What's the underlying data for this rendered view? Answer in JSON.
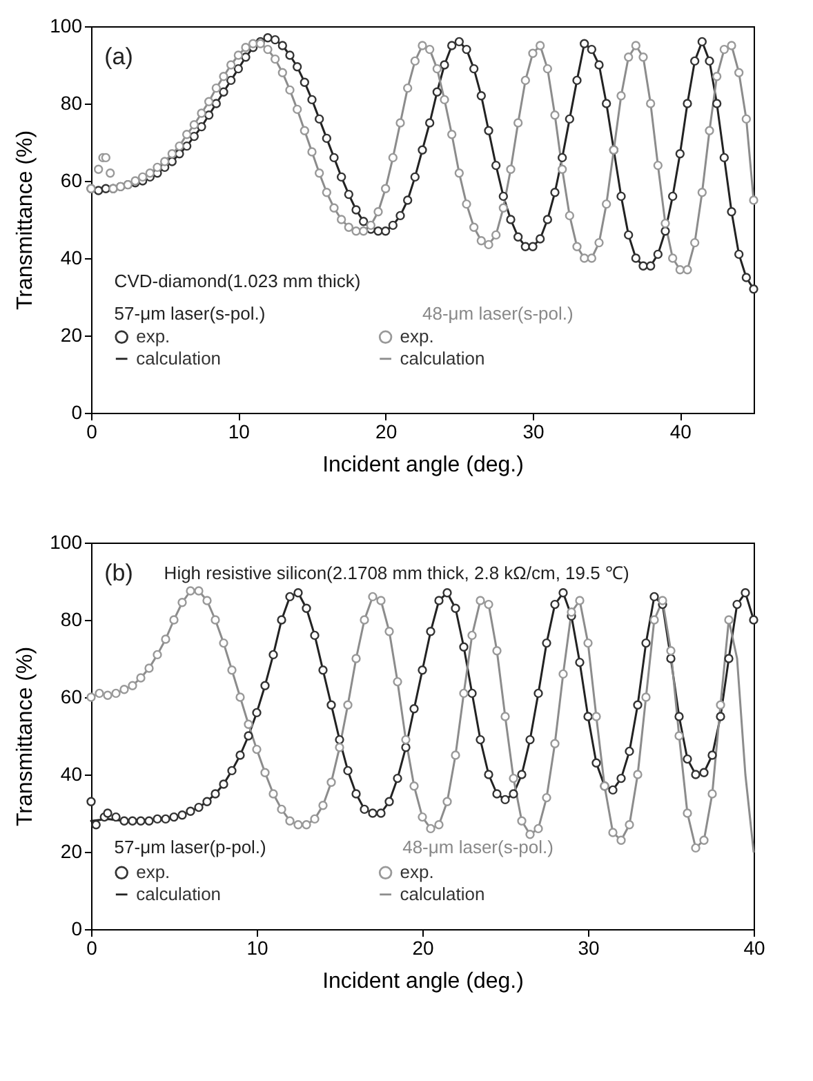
{
  "chart_data": [
    {
      "type": "scatter",
      "xlabel": "Incident angle (deg.)",
      "ylabel": "Transmittance (%)",
      "xlim": [
        0,
        45
      ],
      "ylim": [
        0,
        100
      ],
      "xticks": [
        0,
        10,
        20,
        30,
        40
      ],
      "yticks": [
        0,
        20,
        40,
        60,
        80,
        100
      ],
      "grid": false,
      "legend": "bottom left",
      "annotations": [
        "(a)",
        "CVD-diamond(1.023 mm thick)",
        "57-μm laser(s-pol.)",
        "48-μm laser(s-pol.)"
      ],
      "series": [
        {
          "name": "exp.",
          "type": "scatter",
          "marker": "circle",
          "color": "#333333",
          "x": [
            0,
            0.5,
            1,
            1.5,
            2,
            2.5,
            3,
            3.5,
            4,
            4.5,
            5,
            5.5,
            6,
            6.5,
            7,
            7.5,
            8,
            8.5,
            9,
            9.5,
            10,
            10.5,
            11,
            11.5,
            12,
            12.5,
            13,
            13.5,
            14,
            14.5,
            15,
            15.5,
            16,
            16.5,
            17,
            17.5,
            18,
            18.5,
            19,
            19.5,
            20,
            20.5,
            21,
            21.5,
            22,
            22.5,
            23,
            23.5,
            24,
            24.5,
            25,
            25.5,
            26,
            26.5,
            27,
            27.5,
            28,
            28.5,
            29,
            29.5,
            30,
            30.5,
            31,
            31.5,
            32,
            32.5,
            33,
            33.5,
            34,
            34.5,
            35,
            35.5,
            36,
            36.5,
            37,
            37.5,
            38,
            38.5,
            39,
            39.5,
            40,
            40.5,
            41,
            41.5,
            42,
            42.5,
            43,
            43.5,
            44,
            44.5,
            45
          ],
          "values": [
            58,
            57.5,
            58,
            58,
            58.5,
            59,
            59.5,
            60,
            61,
            62,
            63.5,
            65,
            67,
            69,
            71.5,
            74,
            77,
            80,
            83,
            86,
            89,
            92,
            94.5,
            96,
            97,
            96.5,
            95,
            92.5,
            89.5,
            85.5,
            81,
            76,
            71,
            66,
            61,
            56.5,
            52.5,
            49.5,
            47.5,
            47,
            47,
            48.5,
            51,
            55,
            61,
            68,
            75,
            83,
            90,
            95,
            96,
            94,
            89,
            82,
            73,
            64,
            56,
            50,
            45.5,
            43,
            43,
            45,
            50,
            57,
            66,
            76,
            86,
            95.5,
            94,
            90,
            80,
            68,
            56,
            46,
            40,
            38,
            38,
            41,
            47,
            56,
            67,
            80,
            91,
            96,
            91,
            80,
            66,
            52,
            41,
            35,
            32
          ]
        },
        {
          "name": "exp.",
          "type": "scatter",
          "marker": "circle",
          "color": "#999999",
          "x": [
            0,
            0.5,
            0.8,
            1,
            1.3,
            1.5,
            2,
            2.5,
            3,
            3.5,
            4,
            4.5,
            5,
            5.5,
            6,
            6.5,
            7,
            7.5,
            8,
            8.5,
            9,
            9.5,
            10,
            10.5,
            11,
            11.5,
            12,
            12.5,
            13,
            13.5,
            14,
            14.5,
            15,
            15.5,
            16,
            16.5,
            17,
            17.5,
            18,
            18.5,
            19,
            19.5,
            20,
            20.5,
            21,
            21.5,
            22,
            22.5,
            23,
            23.5,
            24,
            24.5,
            25,
            25.5,
            26,
            26.5,
            27,
            27.5,
            28,
            28.5,
            29,
            29.5,
            30,
            30.5,
            31,
            31.5,
            32,
            32.5,
            33,
            33.5,
            34,
            34.5,
            35,
            35.5,
            36,
            36.5,
            37,
            37.5,
            38,
            38.5,
            39,
            39.5,
            40,
            40.5,
            41,
            41.5,
            42,
            42.5,
            43,
            43.5,
            44,
            44.5,
            45
          ],
          "values": [
            58,
            63,
            66,
            66,
            62,
            58,
            58.5,
            59,
            60,
            61,
            62,
            63.5,
            65,
            67,
            69,
            72,
            74.5,
            77.5,
            80.5,
            84,
            87,
            90,
            92.5,
            94.5,
            95.5,
            95.5,
            94,
            91.5,
            88,
            83.5,
            78.5,
            73,
            67.5,
            62,
            57,
            53,
            50,
            48,
            47,
            47,
            48.5,
            52,
            58,
            66,
            75,
            84,
            91,
            95,
            94,
            89,
            81,
            72,
            62,
            54,
            48,
            44.5,
            43.5,
            46,
            53,
            63,
            75,
            86,
            93,
            95,
            89,
            77,
            63,
            51,
            43,
            40,
            40,
            44,
            54,
            68,
            82,
            92,
            95,
            92,
            80,
            64,
            49,
            40,
            37,
            37,
            44,
            57,
            73,
            87,
            94,
            95,
            88,
            76,
            55
          ]
        },
        {
          "name": "calculation",
          "type": "line",
          "line_style": "solid",
          "color": "#222222",
          "x": [
            0,
            0.5,
            1,
            1.5,
            2,
            2.5,
            3,
            3.5,
            4,
            4.5,
            5,
            5.5,
            6,
            6.5,
            7,
            7.5,
            8,
            8.5,
            9,
            9.5,
            10,
            10.5,
            11,
            11.5,
            12,
            12.5,
            13,
            13.5,
            14,
            14.5,
            15,
            15.5,
            16,
            16.5,
            17,
            17.5,
            18,
            18.5,
            19,
            19.5,
            20,
            20.5,
            21,
            21.5,
            22,
            22.5,
            23,
            23.5,
            24,
            24.5,
            25,
            25.5,
            26,
            26.5,
            27,
            27.5,
            28,
            28.5,
            29,
            29.5,
            30,
            30.5,
            31,
            31.5,
            32,
            32.5,
            33,
            33.5,
            34,
            34.5,
            35,
            35.5,
            36,
            36.5,
            37,
            37.5,
            38,
            38.5,
            39,
            39.5,
            40,
            40.5,
            41,
            41.5,
            42,
            42.5,
            43,
            43.5,
            44,
            44.5,
            45
          ],
          "values": [
            58,
            57.5,
            58,
            58,
            58.5,
            59,
            59.5,
            60,
            61,
            62,
            63.5,
            65,
            67,
            69,
            71.5,
            74,
            77,
            80,
            83,
            86,
            89,
            92,
            94.5,
            96,
            97,
            96.5,
            95,
            92.5,
            89.5,
            85.5,
            81,
            76,
            71,
            66,
            61,
            56.5,
            52.5,
            49.5,
            47.5,
            47,
            47,
            48.5,
            51,
            55,
            61,
            68,
            75,
            83,
            90,
            95,
            96,
            94,
            89,
            82,
            73,
            64,
            56,
            50,
            45.5,
            43,
            43,
            45,
            50,
            57,
            66,
            76,
            86,
            95.5,
            94,
            90,
            80,
            68,
            56,
            46,
            40,
            38,
            38,
            41,
            47,
            56,
            67,
            80,
            91,
            96,
            91,
            80,
            66,
            52,
            41,
            35,
            32
          ]
        },
        {
          "name": "calculation",
          "type": "line",
          "line_style": "solid",
          "color": "#8c8c8c",
          "x": [
            0,
            2,
            2.5,
            3,
            3.5,
            4,
            4.5,
            5,
            5.5,
            6,
            6.5,
            7,
            7.5,
            8,
            8.5,
            9,
            9.5,
            10,
            10.5,
            11,
            11.5,
            12,
            12.5,
            13,
            13.5,
            14,
            14.5,
            15,
            15.5,
            16,
            16.5,
            17,
            17.5,
            18,
            18.5,
            19,
            19.5,
            20,
            20.5,
            21,
            21.5,
            22,
            22.5,
            23,
            23.5,
            24,
            24.5,
            25,
            25.5,
            26,
            26.5,
            27,
            27.5,
            28,
            28.5,
            29,
            29.5,
            30,
            30.5,
            31,
            31.5,
            32,
            32.5,
            33,
            33.5,
            34,
            34.5,
            35,
            35.5,
            36,
            36.5,
            37,
            37.5,
            38,
            38.5,
            39,
            39.5,
            40,
            40.5,
            41,
            41.5,
            42,
            42.5,
            43,
            43.5,
            44,
            44.5,
            45
          ],
          "values": [
            58,
            58.5,
            59,
            60,
            61,
            62,
            63.5,
            65,
            67,
            69,
            72,
            74.5,
            77.5,
            80.5,
            84,
            87,
            90,
            92.5,
            94.5,
            95.5,
            95.5,
            94,
            91.5,
            88,
            83.5,
            78.5,
            73,
            67.5,
            62,
            57,
            53,
            50,
            48,
            47,
            47,
            48.5,
            52,
            58,
            66,
            75,
            84,
            91,
            95,
            94,
            89,
            81,
            72,
            62,
            54,
            48,
            44.5,
            43.5,
            46,
            53,
            63,
            75,
            86,
            93,
            95,
            89,
            77,
            63,
            51,
            43,
            40,
            40,
            44,
            54,
            68,
            82,
            92,
            95,
            92,
            80,
            64,
            49,
            40,
            37,
            37,
            44,
            57,
            73,
            87,
            94,
            95,
            88,
            76,
            55
          ]
        }
      ]
    },
    {
      "type": "scatter",
      "xlabel": "Incident angle (deg.)",
      "ylabel": "Transmittance (%)",
      "xlim": [
        0,
        40
      ],
      "ylim": [
        0,
        100
      ],
      "xticks": [
        0,
        10,
        20,
        30,
        40
      ],
      "yticks": [
        0,
        20,
        40,
        60,
        80,
        100
      ],
      "grid": false,
      "legend": "bottom left",
      "annotations": [
        "(b)",
        "High resistive silicon(2.1708 mm thick, 2.8 kΩ/cm, 19.5 ℃)",
        "57-μm laser(p-pol.)",
        "48-μm laser(s-pol.)"
      ],
      "series": [
        {
          "name": "exp.",
          "type": "scatter",
          "marker": "circle",
          "color": "#333333",
          "x": [
            0,
            0.3,
            0.8,
            1,
            1.5,
            2,
            2.5,
            3,
            3.5,
            4,
            4.5,
            5,
            5.5,
            6,
            6.5,
            7,
            7.5,
            8,
            8.5,
            9,
            9.5,
            10,
            10.5,
            11,
            11.5,
            12,
            12.5,
            13,
            13.5,
            14,
            14.5,
            15,
            15.5,
            16,
            16.5,
            17,
            17.5,
            18,
            18.5,
            19,
            19.5,
            20,
            20.5,
            21,
            21.5,
            22,
            22.5,
            23,
            23.5,
            24,
            24.5,
            25,
            25.5,
            26,
            26.5,
            27,
            27.5,
            28,
            28.5,
            29,
            29.5,
            30,
            30.5,
            31,
            31.5,
            32,
            32.5,
            33,
            33.5,
            34,
            34.5,
            35,
            35.5,
            36,
            36.5,
            37,
            37.5,
            38,
            38.5,
            39,
            39.5,
            40
          ],
          "values": [
            33,
            27,
            29,
            30,
            29,
            28,
            28,
            28,
            28,
            28.5,
            28.5,
            29,
            29.5,
            30.5,
            31.5,
            33,
            35,
            37.5,
            41,
            45,
            50,
            56,
            63,
            71,
            80,
            86,
            87,
            83,
            76,
            67,
            58,
            49,
            41,
            35,
            31,
            30,
            30,
            33,
            39,
            47,
            57,
            67,
            77,
            85,
            87,
            83,
            73,
            61,
            49,
            40,
            35,
            33.5,
            35,
            40,
            49,
            61,
            74,
            84,
            87,
            81,
            69,
            55,
            43,
            37,
            36,
            39,
            46,
            58,
            74,
            86,
            84,
            70,
            55,
            44,
            40,
            40.5,
            45,
            55,
            70,
            84,
            87,
            80
          ]
        },
        {
          "name": "exp.",
          "type": "scatter",
          "marker": "circle",
          "color": "#999999",
          "x": [
            0,
            0.5,
            1,
            1.5,
            2,
            2.5,
            3,
            3.5,
            4,
            4.5,
            5,
            5.5,
            6,
            6.5,
            7,
            7.5,
            8,
            8.5,
            9,
            9.5,
            10,
            10.5,
            11,
            11.5,
            12,
            12.5,
            13,
            13.5,
            14,
            14.5,
            15,
            15.5,
            16,
            16.5,
            17,
            17.5,
            18,
            18.5,
            19,
            19.5,
            20,
            20.5,
            21,
            21.5,
            22,
            22.5,
            23,
            23.5,
            24,
            24.5,
            25,
            25.5,
            26,
            26.5,
            27,
            27.5,
            28,
            28.5,
            29,
            29.5,
            30,
            30.5,
            31,
            31.5,
            32,
            32.5,
            33,
            33.5,
            34,
            34.5,
            35,
            35.5,
            36,
            36.5,
            37,
            37.5,
            38,
            38.5
          ],
          "values": [
            60,
            61,
            60.5,
            61,
            62,
            63,
            65,
            67.5,
            71,
            75,
            80,
            84.5,
            87.5,
            87.5,
            85,
            80,
            74,
            67,
            60,
            53,
            46.5,
            40.5,
            35,
            31,
            28,
            27,
            27,
            28.5,
            32,
            38,
            47,
            58,
            70,
            80,
            86,
            85,
            77,
            64,
            49,
            37,
            29,
            26,
            27,
            33,
            45,
            61,
            76,
            85,
            84,
            72,
            55,
            39,
            28,
            24.5,
            26,
            34,
            48,
            66,
            82,
            85,
            74,
            55,
            37,
            25,
            23,
            27,
            40,
            60,
            80,
            85,
            72,
            50,
            30,
            21,
            23,
            35,
            58,
            80
          ]
        },
        {
          "name": "calculation",
          "type": "line",
          "line_style": "solid",
          "color": "#222222",
          "x": [
            0,
            1,
            2,
            2.5,
            3,
            3.5,
            4,
            4.5,
            5,
            5.5,
            6,
            6.5,
            7,
            7.5,
            8,
            8.5,
            9,
            9.5,
            10,
            10.5,
            11,
            11.5,
            12,
            12.5,
            13,
            13.5,
            14,
            14.5,
            15,
            15.5,
            16,
            16.5,
            17,
            17.5,
            18,
            18.5,
            19,
            19.5,
            20,
            20.5,
            21,
            21.5,
            22,
            22.5,
            23,
            23.5,
            24,
            24.5,
            25,
            25.5,
            26,
            26.5,
            27,
            27.5,
            28,
            28.5,
            29,
            29.5,
            30,
            30.5,
            31,
            31.5,
            32,
            32.5,
            33,
            33.5,
            34,
            34.5,
            35,
            35.5,
            36,
            36.5,
            37,
            37.5,
            38,
            38.5,
            39,
            39.5,
            40
          ],
          "values": [
            28,
            28.5,
            28,
            28,
            28,
            28,
            28.5,
            28.5,
            29,
            29.5,
            30.5,
            31.5,
            33,
            35,
            37.5,
            41,
            45,
            50,
            56,
            63,
            71,
            80,
            86,
            87,
            83,
            76,
            67,
            58,
            49,
            41,
            35,
            31,
            30,
            30,
            33,
            39,
            47,
            57,
            67,
            77,
            85,
            87,
            83,
            73,
            61,
            49,
            40,
            35,
            33.5,
            35,
            40,
            49,
            61,
            74,
            84,
            87,
            81,
            69,
            55,
            43,
            37,
            36,
            39,
            46,
            58,
            74,
            86,
            84,
            70,
            55,
            44,
            40,
            40.5,
            45,
            55,
            70,
            84,
            87,
            80
          ]
        },
        {
          "name": "calculation",
          "type": "line",
          "line_style": "solid",
          "color": "#8c8c8c",
          "x": [
            0,
            0.5,
            1,
            1.5,
            2,
            2.5,
            3,
            3.5,
            4,
            4.5,
            5,
            5.5,
            6,
            6.5,
            7,
            7.5,
            8,
            8.5,
            9,
            9.5,
            10,
            10.5,
            11,
            11.5,
            12,
            12.5,
            13,
            13.5,
            14,
            14.5,
            15,
            15.5,
            16,
            16.5,
            17,
            17.5,
            18,
            18.5,
            19,
            19.5,
            20,
            20.5,
            21,
            21.5,
            22,
            22.5,
            23,
            23.5,
            24,
            24.5,
            25,
            25.5,
            26,
            26.5,
            27,
            27.5,
            28,
            28.5,
            29,
            29.5,
            30,
            30.5,
            31,
            31.5,
            32,
            32.5,
            33,
            33.5,
            34,
            34.5,
            35,
            35.5,
            36,
            36.5,
            37,
            37.5,
            38,
            38.5,
            39,
            39.5,
            40
          ],
          "values": [
            60,
            61,
            60.5,
            61,
            62,
            63,
            65,
            67.5,
            71,
            75,
            80,
            84.5,
            87.5,
            87.5,
            85,
            80,
            74,
            67,
            60,
            53,
            46.5,
            40.5,
            35,
            31,
            28,
            27,
            27,
            28.5,
            32,
            38,
            47,
            58,
            70,
            80,
            86,
            85,
            77,
            64,
            49,
            37,
            29,
            26,
            27,
            33,
            45,
            61,
            76,
            85,
            84,
            72,
            55,
            39,
            28,
            24.5,
            26,
            34,
            48,
            66,
            82,
            85,
            74,
            55,
            37,
            25,
            23,
            27,
            40,
            60,
            80,
            85,
            72,
            50,
            30,
            21,
            23,
            35,
            58,
            80,
            70,
            40,
            20
          ]
        }
      ]
    }
  ]
}
